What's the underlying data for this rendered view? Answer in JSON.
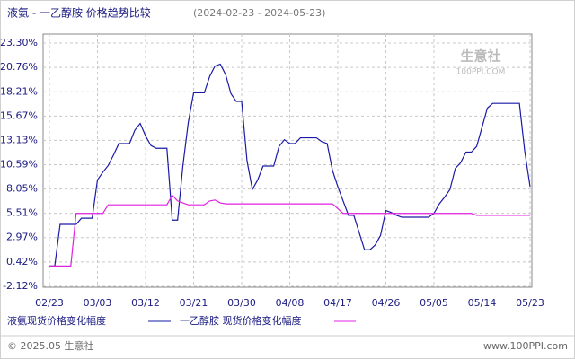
{
  "chart_data": {
    "type": "line",
    "title": "液氨 - 一乙醇胺  价格趋势比较",
    "subtitle": "(2024-02-23 - 2024-05-23)",
    "categories": [
      "02/23",
      null,
      null,
      null,
      null,
      null,
      null,
      null,
      null,
      "03/03",
      null,
      null,
      null,
      null,
      null,
      null,
      null,
      null,
      "03/12",
      null,
      null,
      null,
      null,
      null,
      null,
      null,
      null,
      "03/21",
      null,
      null,
      null,
      null,
      null,
      null,
      null,
      null,
      "03/30",
      null,
      null,
      null,
      null,
      null,
      null,
      null,
      null,
      "04/08",
      null,
      null,
      null,
      null,
      null,
      null,
      null,
      null,
      "04/17",
      null,
      null,
      null,
      null,
      null,
      null,
      null,
      null,
      "04/26",
      null,
      null,
      null,
      null,
      null,
      null,
      null,
      null,
      "05/05",
      null,
      null,
      null,
      null,
      null,
      null,
      null,
      null,
      "05/14",
      null,
      null,
      null,
      null,
      null,
      null,
      null,
      null,
      "05/23"
    ],
    "series": [
      {
        "name": "液氨现货价格变化幅度",
        "color": "#1a1aa6",
        "values": [
          0,
          0,
          4.35,
          4.35,
          4.35,
          4.35,
          5.0,
          5.0,
          5.0,
          9.0,
          9.8,
          10.5,
          11.6,
          12.8,
          12.8,
          12.8,
          14.2,
          14.9,
          13.6,
          12.6,
          12.3,
          12.3,
          12.3,
          4.8,
          4.8,
          10.5,
          15.0,
          18.1,
          18.1,
          18.1,
          19.8,
          20.9,
          21.1,
          20.0,
          18.0,
          17.2,
          17.2,
          11.0,
          8.0,
          9.0,
          10.45,
          10.45,
          10.45,
          12.5,
          13.2,
          12.8,
          12.8,
          13.4,
          13.4,
          13.4,
          13.4,
          13.0,
          12.8,
          10.0,
          8.3,
          6.8,
          5.3,
          5.3,
          3.5,
          1.7,
          1.7,
          2.2,
          3.2,
          5.8,
          5.6,
          5.3,
          5.1,
          5.1,
          5.1,
          5.1,
          5.1,
          5.1,
          5.5,
          6.5,
          7.2,
          8.0,
          10.2,
          10.8,
          11.9,
          11.9,
          12.5,
          14.5,
          16.5,
          17.0,
          17.0,
          17.0,
          17.0,
          17.0,
          17.0,
          12.0,
          8.3
        ]
      },
      {
        "name": "一乙醇胺 现货价格变化幅度",
        "color": "#e020e0",
        "values": [
          0,
          0,
          0,
          0,
          0,
          5.5,
          5.5,
          5.5,
          5.5,
          5.5,
          5.5,
          6.4,
          6.4,
          6.4,
          6.4,
          6.4,
          6.4,
          6.4,
          6.4,
          6.4,
          6.4,
          6.4,
          6.4,
          7.4,
          6.8,
          6.6,
          6.4,
          6.4,
          6.4,
          6.4,
          6.8,
          6.9,
          6.6,
          6.5,
          6.5,
          6.5,
          6.5,
          6.5,
          6.5,
          6.5,
          6.5,
          6.5,
          6.5,
          6.5,
          6.5,
          6.5,
          6.5,
          6.5,
          6.5,
          6.5,
          6.5,
          6.5,
          6.5,
          6.5,
          6.0,
          5.5,
          5.5,
          5.5,
          5.5,
          5.5,
          5.5,
          5.5,
          5.5,
          5.5,
          5.5,
          5.5,
          5.5,
          5.5,
          5.5,
          5.5,
          5.5,
          5.5,
          5.5,
          5.5,
          5.5,
          5.5,
          5.5,
          5.5,
          5.5,
          5.5,
          5.3,
          5.3,
          5.3,
          5.3,
          5.3,
          5.3,
          5.3,
          5.3,
          5.3,
          5.3,
          5.3
        ]
      }
    ],
    "ylim": [
      -2.12,
      23.3
    ],
    "yticks": [
      {
        "value": -2.12,
        "label": "-2.12%"
      },
      {
        "value": 0.42,
        "label": "0.42%"
      },
      {
        "value": 2.97,
        "label": "2.97%"
      },
      {
        "value": 5.51,
        "label": "5.51%"
      },
      {
        "value": 8.05,
        "label": "8.05%"
      },
      {
        "value": 10.59,
        "label": "10.59%"
      },
      {
        "value": 13.13,
        "label": "13.13%"
      },
      {
        "value": 15.67,
        "label": "15.67%"
      },
      {
        "value": 18.21,
        "label": "18.21%"
      },
      {
        "value": 20.76,
        "label": "20.76%"
      },
      {
        "value": 23.3,
        "label": "23.30%"
      }
    ],
    "grid": true,
    "watermark": [
      "生意社",
      "100PPI.COM"
    ],
    "footer": {
      "left": "© 2025.05 生意社",
      "right": "www.100PPI.com"
    }
  }
}
